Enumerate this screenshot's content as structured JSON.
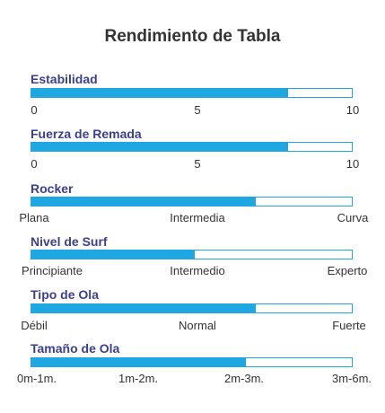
{
  "title": "Rendimiento de Tabla",
  "colors": {
    "bar": "#1ea7e1",
    "label": "#3a3f8f",
    "text": "#333333"
  },
  "metrics": [
    {
      "label": "Estabilidad",
      "fraction": 0.8,
      "ticks": [
        "0",
        "5",
        "10"
      ]
    },
    {
      "label": "Fuerza de Remada",
      "fraction": 0.8,
      "ticks": [
        "0",
        "5",
        "10"
      ]
    },
    {
      "label": "Rocker",
      "fraction": 0.7,
      "ticks": [
        "Plana",
        "Intermedia",
        "Curva"
      ]
    },
    {
      "label": "Nivel de Surf",
      "fraction": 0.51,
      "ticks": [
        "Principiante",
        "Intermedio",
        "Experto"
      ]
    },
    {
      "label": "Tipo de Ola",
      "fraction": 0.7,
      "ticks": [
        "Débil",
        "Normal",
        "Fuerte"
      ]
    },
    {
      "label": "Tamaño de Ola",
      "fraction": 0.67,
      "ticks": [
        "0m-1m.",
        "1m-2m.",
        "2m-3m.",
        "3m-6m."
      ]
    }
  ]
}
